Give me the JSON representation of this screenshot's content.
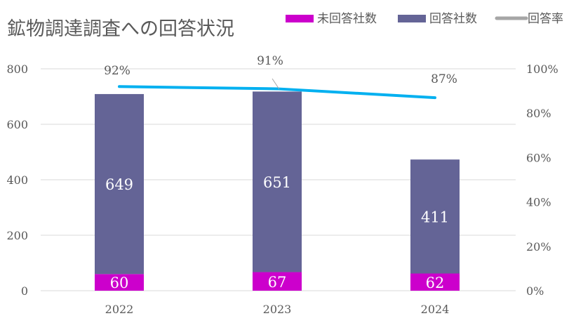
{
  "chart_data": {
    "type": "bar",
    "stacked": true,
    "title": "鉱物調達調査への回答状況",
    "categories": [
      "2022",
      "2023",
      "2024"
    ],
    "series": [
      {
        "name": "未回答社数",
        "values": [
          60,
          67,
          62
        ],
        "color": "#cc00cc",
        "axis": "left",
        "kind": "bar"
      },
      {
        "name": "回答社数",
        "values": [
          649,
          651,
          411
        ],
        "color": "#646496",
        "axis": "left",
        "kind": "bar"
      },
      {
        "name": "回答率",
        "values": [
          92,
          91,
          87
        ],
        "color": "#00b0f0",
        "legend_color": "#a6a6a6",
        "axis": "right",
        "kind": "line",
        "labels": [
          "92%",
          "91%",
          "87%"
        ]
      }
    ],
    "ylim": [
      0,
      800
    ],
    "yticks": [
      "0",
      "200",
      "400",
      "600",
      "800"
    ],
    "y2lim": [
      0,
      100
    ],
    "y2ticks": [
      "0%",
      "20%",
      "40%",
      "60%",
      "80%",
      "100%"
    ],
    "grid": true,
    "legend": "top-right"
  }
}
